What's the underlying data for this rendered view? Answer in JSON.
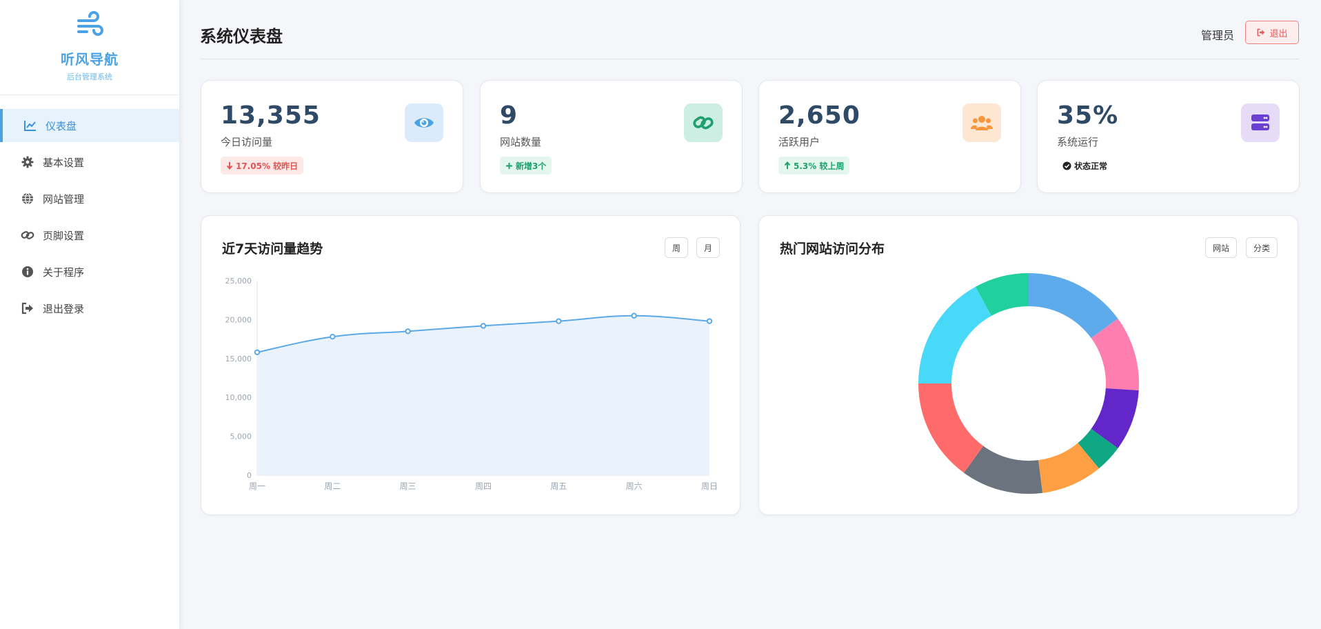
{
  "app": {
    "name": "听风导航",
    "subtitle": "后台管理系统"
  },
  "sidebar": {
    "items": [
      {
        "label": "仪表盘",
        "icon": "chart-line-icon",
        "active": true
      },
      {
        "label": "基本设置",
        "icon": "gear-icon",
        "active": false
      },
      {
        "label": "网站管理",
        "icon": "globe-icon",
        "active": false
      },
      {
        "label": "页脚设置",
        "icon": "link-icon",
        "active": false
      },
      {
        "label": "关于程序",
        "icon": "info-icon",
        "active": false
      },
      {
        "label": "退出登录",
        "icon": "sign-out-icon",
        "active": false
      }
    ]
  },
  "header": {
    "title": "系统仪表盘",
    "user": "管理员",
    "logout_label": "退出"
  },
  "stats": [
    {
      "value": "13,355",
      "label": "今日访问量",
      "badge": "17.05% 较昨日",
      "trend": "down",
      "icon": "eye-icon",
      "color": "#4ba3e3",
      "icon_bg": "#dcebfb"
    },
    {
      "value": "9",
      "label": "网站数量",
      "badge": "新增3个",
      "trend": "plus",
      "icon": "link-icon",
      "color": "#1fa070",
      "icon_bg": "#cdeee2"
    },
    {
      "value": "2,650",
      "label": "活跃用户",
      "badge": "5.3% 较上周",
      "trend": "up",
      "icon": "users-icon",
      "color": "#f7963c",
      "icon_bg": "#fde6d2"
    },
    {
      "value": "35%",
      "label": "系统运行",
      "badge": "状态正常",
      "trend": "check",
      "icon": "server-icon",
      "color": "#6a3fd4",
      "icon_bg": "#e6dcf7"
    }
  ],
  "charts": {
    "trend": {
      "title": "近7天访问量趋势",
      "buttons": [
        "周",
        "月"
      ]
    },
    "pie": {
      "title": "热门网站访问分布",
      "buttons": [
        "网站",
        "分类"
      ]
    }
  },
  "chart_data": [
    {
      "type": "area",
      "title": "近7天访问量趋势",
      "categories": [
        "周一",
        "周二",
        "周三",
        "周四",
        "周五",
        "周六",
        "周日"
      ],
      "values": [
        15800,
        17800,
        18500,
        19200,
        19800,
        20500,
        19800
      ],
      "ylim": [
        0,
        25000
      ],
      "yticks": [
        0,
        5000,
        10000,
        15000,
        20000,
        25000
      ],
      "ytick_labels": [
        "0",
        "5,000",
        "10,000",
        "15,000",
        "20,000",
        "25,000"
      ],
      "color": "#5ba9e6",
      "fill": "#eaf3fc",
      "grid": false
    },
    {
      "type": "pie",
      "title": "热门网站访问分布",
      "donut": true,
      "values": [
        15,
        11,
        9,
        4,
        9,
        12,
        15,
        17,
        8
      ],
      "colors": [
        "#5dabea",
        "#ff7eb0",
        "#6226c9",
        "#10a884",
        "#fe9f43",
        "#6b737f",
        "#ff6b6b",
        "#48d8f8",
        "#20d09e"
      ]
    }
  ]
}
